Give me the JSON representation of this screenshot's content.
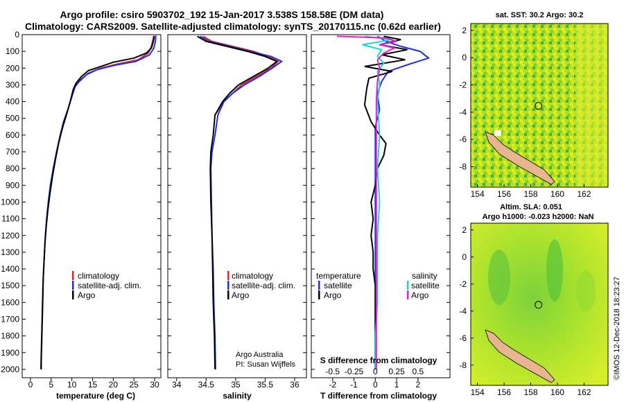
{
  "header": {
    "title_line1": "Argo profile: csiro 5903702_192 15-Jan-2017 3.538S 158.58E (DM data)",
    "title_line2": "Climatology: CARS2009. Satellite-adjusted climatology: synTS_20170115.nc (0.62d earlier)"
  },
  "colors": {
    "climatology": "#e8201e",
    "satellite": "#1f2fd6",
    "argo": "#000000",
    "sat_salinity": "#19d6d6",
    "argo_salinity": "#e020d0"
  },
  "chart_data": [
    {
      "type": "line",
      "name": "temperature",
      "xlabel": "temperature (deg C)",
      "ylabel": "",
      "xlim": [
        -2,
        31.5
      ],
      "ylim": [
        2050,
        0
      ],
      "xticks": [
        0,
        5,
        10,
        15,
        20,
        25,
        30
      ],
      "yticks": [
        0,
        100,
        200,
        300,
        400,
        500,
        600,
        700,
        800,
        900,
        1000,
        1100,
        1200,
        1300,
        1400,
        1500,
        1600,
        1700,
        1800,
        1900,
        2000
      ],
      "legend": [
        "climatology",
        "satellite-adj. clim.",
        "Argo"
      ],
      "series": [
        {
          "name": "climatology",
          "color": "#e8201e",
          "points": [
            [
              29.8,
              5
            ],
            [
              29.6,
              30
            ],
            [
              29.2,
              70
            ],
            [
              28.5,
              110
            ],
            [
              26,
              150
            ],
            [
              21,
              175
            ],
            [
              17,
              200
            ],
            [
              14,
              230
            ],
            [
              12,
              270
            ],
            [
              10.8,
              310
            ],
            [
              10,
              370
            ],
            [
              9,
              450
            ],
            [
              8,
              520
            ],
            [
              7.2,
              600
            ],
            [
              6.3,
              700
            ],
            [
              5.5,
              800
            ],
            [
              5,
              900
            ]
          ]
        },
        {
          "name": "satellite-adj. clim.",
          "color": "#1f2fd6",
          "points": [
            [
              30.3,
              5
            ],
            [
              30.2,
              40
            ],
            [
              29.8,
              80
            ],
            [
              28.8,
              120
            ],
            [
              25.5,
              160
            ],
            [
              20,
              185
            ],
            [
              16,
              210
            ],
            [
              13.5,
              240
            ],
            [
              11.8,
              280
            ],
            [
              10.8,
              310
            ],
            [
              10,
              370
            ],
            [
              9,
              450
            ],
            [
              8,
              520
            ],
            [
              7.2,
              600
            ],
            [
              6.3,
              700
            ],
            [
              5.5,
              800
            ],
            [
              4.8,
              900
            ],
            [
              4.3,
              1000
            ],
            [
              3.9,
              1100
            ],
            [
              3.6,
              1200
            ],
            [
              3.4,
              1300
            ],
            [
              3.2,
              1400
            ],
            [
              3.0,
              1500
            ],
            [
              2.9,
              1600
            ],
            [
              2.8,
              1700
            ],
            [
              2.7,
              1800
            ],
            [
              2.6,
              1900
            ],
            [
              2.5,
              2000
            ]
          ]
        },
        {
          "name": "Argo",
          "color": "#000000",
          "points": [
            [
              29.9,
              10
            ],
            [
              29.7,
              40
            ],
            [
              29.2,
              80
            ],
            [
              28,
              110
            ],
            [
              25,
              140
            ],
            [
              20,
              165
            ],
            [
              17,
              190
            ],
            [
              14,
              215
            ],
            [
              12.3,
              250
            ],
            [
              11,
              290
            ],
            [
              10.3,
              330
            ],
            [
              9.6,
              400
            ],
            [
              8.8,
              470
            ],
            [
              7.7,
              560
            ],
            [
              6.8,
              650
            ],
            [
              6,
              750
            ],
            [
              5.3,
              850
            ],
            [
              4.7,
              950
            ],
            [
              4.2,
              1050
            ],
            [
              3.8,
              1150
            ],
            [
              3.5,
              1250
            ],
            [
              3.3,
              1350
            ],
            [
              3.1,
              1450
            ],
            [
              3.0,
              1550
            ],
            [
              2.9,
              1650
            ],
            [
              2.8,
              1750
            ],
            [
              2.7,
              1850
            ],
            [
              2.6,
              1950
            ],
            [
              2.6,
              2000
            ]
          ]
        }
      ]
    },
    {
      "type": "line",
      "name": "salinity",
      "xlabel": "salinity",
      "ylabel": "",
      "xlim": [
        33.85,
        36.2
      ],
      "ylim": [
        2050,
        0
      ],
      "xticks": [
        34,
        34.5,
        35,
        35.5,
        36
      ],
      "legend": [
        "climatology",
        "satellite-adj. clim.",
        "Argo"
      ],
      "series": [
        {
          "name": "climatology",
          "color": "#e8201e",
          "points": [
            [
              34.45,
              10
            ],
            [
              34.6,
              40
            ],
            [
              34.95,
              70
            ],
            [
              35.3,
              100
            ],
            [
              35.55,
              130
            ],
            [
              35.72,
              160
            ],
            [
              35.6,
              200
            ],
            [
              35.35,
              250
            ],
            [
              35.1,
              300
            ],
            [
              34.95,
              350
            ],
            [
              34.8,
              400
            ],
            [
              34.65,
              480
            ]
          ]
        },
        {
          "name": "satellite-adj. clim.",
          "color": "#1f2fd6",
          "points": [
            [
              34.4,
              10
            ],
            [
              34.55,
              40
            ],
            [
              34.9,
              70
            ],
            [
              35.25,
              100
            ],
            [
              35.6,
              130
            ],
            [
              35.78,
              160
            ],
            [
              35.62,
              200
            ],
            [
              35.4,
              250
            ],
            [
              35.15,
              300
            ],
            [
              34.95,
              350
            ],
            [
              34.8,
              400
            ],
            [
              34.7,
              480
            ],
            [
              34.65,
              600
            ],
            [
              34.6,
              700
            ],
            [
              34.58,
              800
            ],
            [
              34.59,
              1000
            ],
            [
              34.6,
              1200
            ],
            [
              34.62,
              1400
            ],
            [
              34.63,
              1600
            ],
            [
              34.65,
              1800
            ],
            [
              34.66,
              2000
            ]
          ]
        },
        {
          "name": "Argo",
          "color": "#000000",
          "points": [
            [
              34.35,
              10
            ],
            [
              34.5,
              40
            ],
            [
              34.85,
              70
            ],
            [
              35.2,
              100
            ],
            [
              35.5,
              130
            ],
            [
              35.7,
              160
            ],
            [
              35.55,
              200
            ],
            [
              35.3,
              250
            ],
            [
              35.05,
              300
            ],
            [
              34.9,
              350
            ],
            [
              34.78,
              400
            ],
            [
              34.65,
              480
            ],
            [
              34.62,
              600
            ],
            [
              34.58,
              700
            ],
            [
              34.57,
              800
            ],
            [
              34.58,
              1000
            ],
            [
              34.6,
              1200
            ],
            [
              34.61,
              1400
            ],
            [
              34.62,
              1600
            ],
            [
              34.64,
              1800
            ],
            [
              34.65,
              2000
            ]
          ]
        }
      ]
    },
    {
      "type": "line",
      "name": "difference from climatology",
      "xlabel": "T difference from climatology",
      "xlabel2": "S difference from climatology",
      "xlim": [
        -3,
        3.5
      ],
      "ylim": [
        2050,
        0
      ],
      "xticks": [
        -2,
        -1,
        0,
        1,
        2
      ],
      "xticks2": [
        "-0.5",
        "-0.25",
        "0",
        "0.25",
        "0.5"
      ],
      "legend_headers": [
        "temperature",
        "salinity"
      ],
      "legend_left": [
        "satellite",
        "Argo"
      ],
      "legend_right": [
        "satellite",
        "Argo"
      ],
      "series": [
        {
          "name": "temperature satellite",
          "color": "#1f2fd6",
          "points": [
            [
              0.1,
              10
            ],
            [
              0.5,
              40
            ],
            [
              1.2,
              70
            ],
            [
              2.1,
              100
            ],
            [
              2.5,
              140
            ],
            [
              1.5,
              180
            ],
            [
              0.6,
              220
            ],
            [
              0.3,
              280
            ],
            [
              0.1,
              350
            ],
            [
              0.2,
              450
            ],
            [
              0,
              550
            ],
            [
              0,
              700
            ],
            [
              0,
              900
            ],
            [
              0,
              1200
            ],
            [
              0,
              1500
            ],
            [
              0,
              1800
            ],
            [
              0,
              2000
            ]
          ]
        },
        {
          "name": "temperature Argo",
          "color": "#000000",
          "points": [
            [
              0.4,
              10
            ],
            [
              1.2,
              30
            ],
            [
              0.2,
              60
            ],
            [
              1.5,
              90
            ],
            [
              0.3,
              120
            ],
            [
              1.4,
              150
            ],
            [
              -0.5,
              190
            ],
            [
              0.8,
              220
            ],
            [
              -0.3,
              260
            ],
            [
              -0.4,
              320
            ],
            [
              -0.5,
              420
            ],
            [
              -0.2,
              520
            ],
            [
              0.2,
              600
            ],
            [
              0.5,
              650
            ],
            [
              0.4,
              720
            ],
            [
              0.1,
              800
            ],
            [
              0,
              900
            ],
            [
              -0.2,
              1000
            ],
            [
              -0.1,
              1100
            ],
            [
              -0.2,
              1200
            ],
            [
              -0.1,
              1300
            ],
            [
              -0.1,
              1400
            ],
            [
              0,
              1500
            ],
            [
              0,
              1600
            ],
            [
              0,
              1700
            ],
            [
              0,
              1800
            ],
            [
              0,
              1900
            ],
            [
              0,
              2000
            ]
          ]
        },
        {
          "name": "salinity satellite",
          "color": "#19d6d6",
          "points": [
            [
              -0.5,
              10
            ],
            [
              0.8,
              30
            ],
            [
              -0.6,
              60
            ],
            [
              0.3,
              90
            ],
            [
              0.1,
              130
            ],
            [
              0.4,
              170
            ],
            [
              0.1,
              220
            ],
            [
              0.2,
              300
            ],
            [
              0.1,
              400
            ],
            [
              0.2,
              600
            ],
            [
              0.1,
              800
            ],
            [
              0.2,
              1000
            ],
            [
              0.1,
              1200
            ],
            [
              0.1,
              1400
            ],
            [
              0.1,
              1600
            ],
            [
              0,
              1800
            ],
            [
              0,
              2000
            ]
          ]
        },
        {
          "name": "salinity Argo",
          "color": "#e020d0",
          "points": [
            [
              -1.8,
              10
            ],
            [
              0.5,
              20
            ],
            [
              1.0,
              40
            ],
            [
              0.2,
              60
            ],
            [
              0.9,
              80
            ],
            [
              0.4,
              110
            ],
            [
              0.1,
              150
            ],
            [
              0.2,
              200
            ],
            [
              0.1,
              280
            ],
            [
              0.05,
              400
            ],
            [
              0.05,
              700
            ],
            [
              0.05,
              1000
            ],
            [
              0.05,
              1400
            ],
            [
              0.05,
              1800
            ],
            [
              0.05,
              2000
            ]
          ]
        }
      ]
    },
    {
      "type": "heatmap",
      "name": "sat SST map",
      "title": "sat. SST: 30.2  Argo: 30.2",
      "xlim": [
        153.5,
        163.8
      ],
      "ylim": [
        -9.5,
        2.5
      ],
      "xticks": [
        154,
        156,
        158,
        160,
        162
      ],
      "yticks": [
        2,
        0,
        -2,
        -4,
        -6,
        -8
      ],
      "marker": [
        158.58,
        -3.54
      ]
    },
    {
      "type": "heatmap",
      "name": "altimetry SLA map",
      "title": "Altim. SLA: 0.051",
      "subtitle": "Argo h1000: -0.023 h2000: NaN",
      "xlim": [
        153.5,
        163.8
      ],
      "ylim": [
        -9.5,
        2.5
      ],
      "xticks": [
        154,
        156,
        158,
        160,
        162
      ],
      "yticks": [
        2,
        0,
        -2,
        -4,
        -6,
        -8
      ],
      "marker": [
        158.58,
        -3.54
      ]
    }
  ],
  "annotations": {
    "credit_line1": "Argo Australia",
    "credit_line2": "PI: Susan Wijffels",
    "stamp": "©IMOS 12-Dec-2018 18:23:27"
  }
}
